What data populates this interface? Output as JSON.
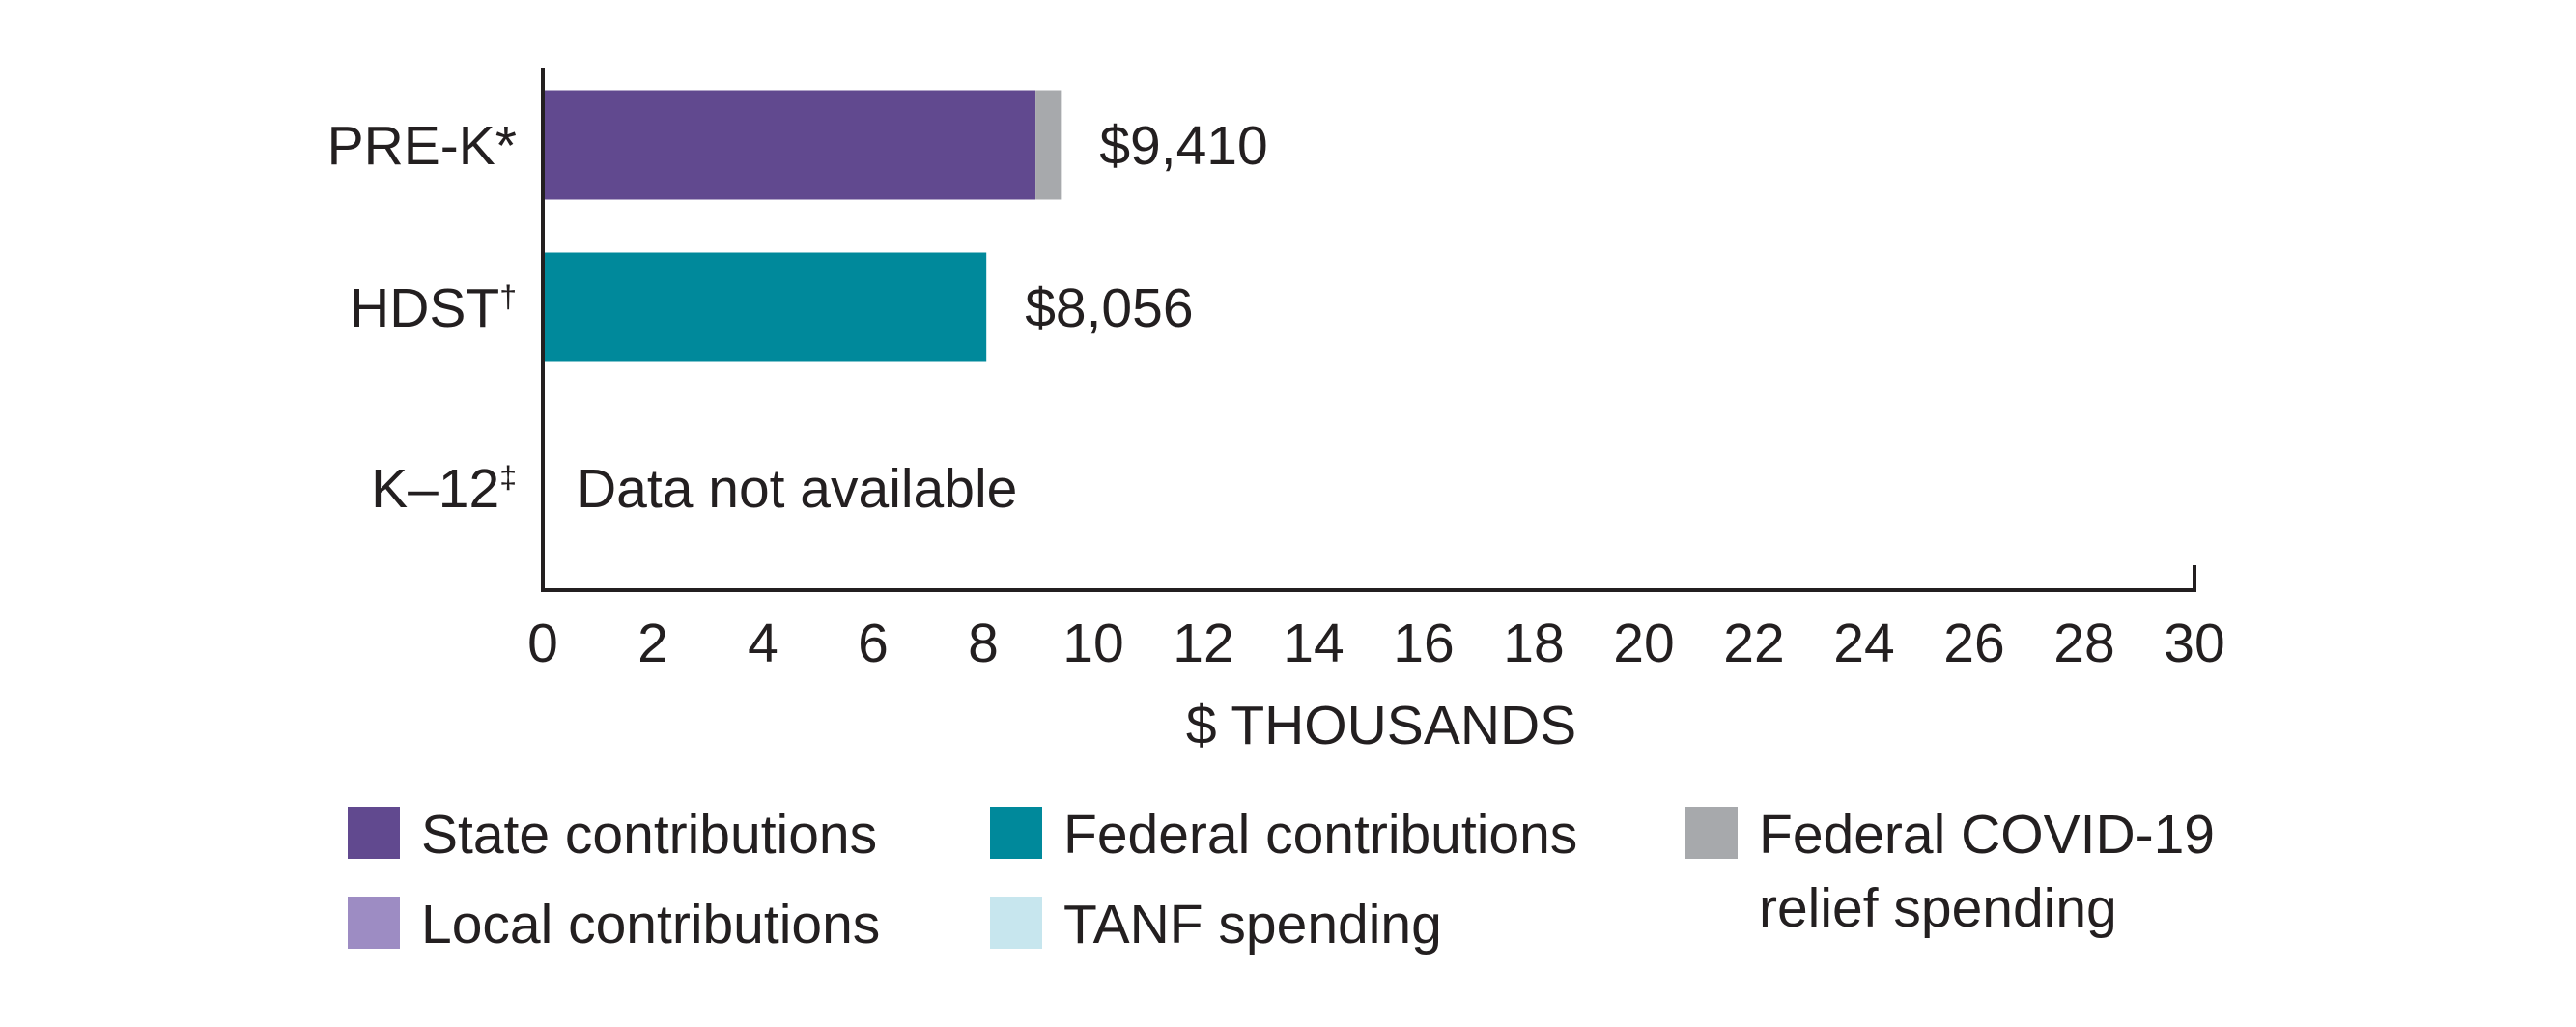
{
  "chart_data": {
    "type": "bar",
    "orientation": "horizontal",
    "stacked": true,
    "title": "",
    "xlabel": "$ THOUSANDS",
    "ylabel": "",
    "xlim": [
      0,
      30
    ],
    "x_ticks": [
      0,
      2,
      4,
      6,
      8,
      10,
      12,
      14,
      16,
      18,
      20,
      22,
      24,
      26,
      28,
      30
    ],
    "grid": false,
    "categories": [
      "PRE-K*",
      "HDST†",
      "K–12‡"
    ],
    "series": [
      {
        "name": "State contributions",
        "color": "#61498f",
        "values": [
          8.95,
          0,
          null
        ]
      },
      {
        "name": "Local contributions",
        "color": "#9d8cc3",
        "values": [
          0,
          0,
          null
        ]
      },
      {
        "name": "Federal contributions",
        "color": "#00899b",
        "values": [
          0,
          8.056,
          null
        ]
      },
      {
        "name": "TANF spending",
        "color": "#c7e6ee",
        "values": [
          0,
          0,
          null
        ]
      },
      {
        "name": "Federal COVID-19 relief spending",
        "color": "#a7a9ac",
        "values": [
          0.46,
          0,
          null
        ]
      }
    ],
    "totals": [
      9.41,
      8.056,
      null
    ],
    "data_labels": [
      "$9,410",
      "$8,056",
      "Data not available"
    ],
    "legend": {
      "placement": "bottom",
      "items": [
        {
          "label": "State contributions",
          "color": "#61498f"
        },
        {
          "label": "Federal contributions",
          "color": "#00899b"
        },
        {
          "label": "Federal COVID-19 relief spending",
          "label_lines": [
            "Federal COVID-19",
            "relief spending"
          ],
          "color": "#a7a9ac"
        },
        {
          "label": "Local contributions",
          "color": "#9d8cc3"
        },
        {
          "label": "TANF spending",
          "color": "#c7e6ee"
        }
      ]
    }
  }
}
